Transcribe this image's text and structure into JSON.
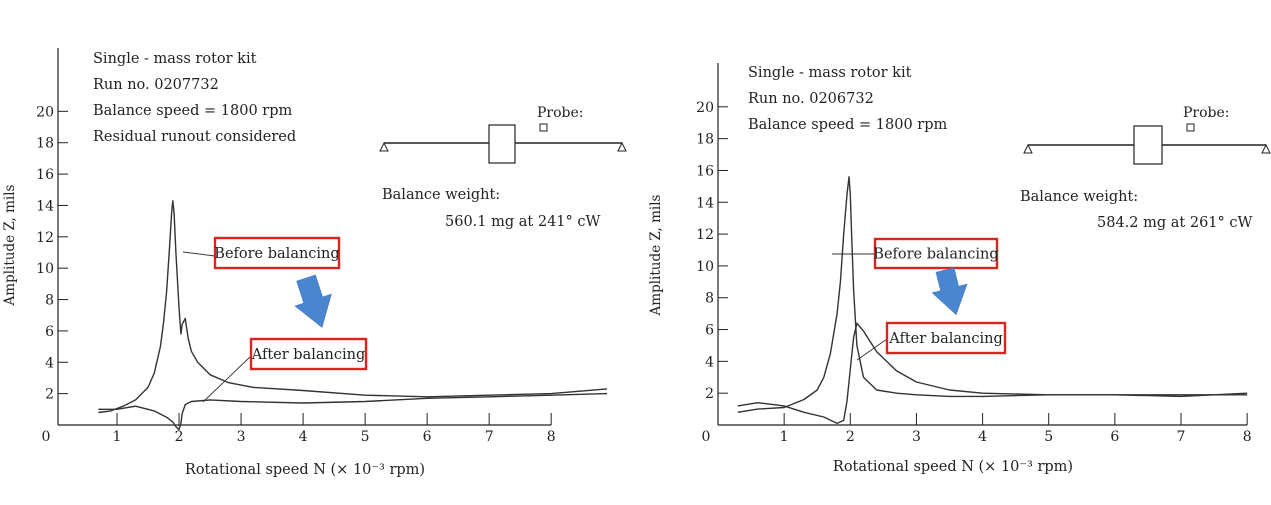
{
  "chart_data": [
    {
      "type": "line",
      "info_lines": [
        "Single - mass rotor kit",
        "Run no. 0207732",
        "Balance speed = 1800 rpm",
        "Residual runout considered"
      ],
      "probe_label": "Probe:",
      "balance_weight_label": "Balance weight:",
      "balance_weight_value": "560.1 mg at 241° cW",
      "xlabel": "Rotational speed N (× 10⁻³ rpm)",
      "ylabel": "Amplitude Z, mils",
      "x_ticks": [
        0,
        1,
        2,
        3,
        4,
        5,
        6,
        7,
        8
      ],
      "y_ticks": [
        2,
        4,
        6,
        8,
        10,
        12,
        14,
        16,
        18,
        20
      ],
      "xlim": [
        0,
        8.9
      ],
      "ylim": [
        0,
        22
      ],
      "annotations": [
        "Before balancing",
        "After balancing"
      ],
      "series": [
        {
          "name": "Before balancing",
          "x": [
            0.7,
            0.9,
            1.1,
            1.3,
            1.5,
            1.6,
            1.7,
            1.75,
            1.8,
            1.85,
            1.88,
            1.9,
            1.92,
            1.95,
            2.0,
            2.03,
            2.05,
            2.1,
            2.15,
            2.2,
            2.3,
            2.5,
            2.8,
            3.2,
            4.0,
            5.0,
            6.0,
            7.0,
            8.0,
            8.9
          ],
          "y": [
            0.8,
            0.9,
            1.2,
            1.6,
            2.4,
            3.3,
            5.0,
            6.5,
            8.5,
            11.5,
            13.5,
            14.3,
            13.5,
            11.0,
            7.5,
            5.8,
            6.4,
            6.8,
            5.5,
            4.7,
            4.0,
            3.2,
            2.7,
            2.4,
            2.2,
            1.9,
            1.8,
            1.9,
            2.0,
            2.3
          ]
        },
        {
          "name": "After balancing",
          "x": [
            0.7,
            1.0,
            1.3,
            1.6,
            1.8,
            1.9,
            1.95,
            2.0,
            2.03,
            2.05,
            2.1,
            2.2,
            2.5,
            3.0,
            4.0,
            5.0,
            6.0,
            7.0,
            8.0,
            8.9
          ],
          "y": [
            1.0,
            1.0,
            1.2,
            0.9,
            0.5,
            0.2,
            -0.1,
            -0.3,
            0.1,
            0.7,
            1.3,
            1.5,
            1.6,
            1.5,
            1.4,
            1.5,
            1.7,
            1.8,
            1.9,
            2.0
          ]
        }
      ]
    },
    {
      "type": "line",
      "info_lines": [
        "Single - mass rotor kit",
        "Run no. 0206732",
        "Balance speed = 1800 rpm"
      ],
      "probe_label": "Probe:",
      "balance_weight_label": "Balance weight:",
      "balance_weight_value": "584.2 mg at 261° cW",
      "xlabel": "Rotational speed N (× 10⁻³ rpm)",
      "ylabel": "Amplitude Z, mils",
      "x_ticks": [
        0,
        1,
        2,
        3,
        4,
        5,
        6,
        7,
        8
      ],
      "y_ticks": [
        2,
        4,
        6,
        8,
        10,
        12,
        14,
        16,
        18,
        20
      ],
      "xlim": [
        0,
        8.3
      ],
      "ylim": [
        0,
        22
      ],
      "annotations": [
        "Before balancing",
        "After balancing"
      ],
      "series": [
        {
          "name": "Before balancing",
          "x": [
            0.3,
            0.6,
            1.0,
            1.3,
            1.5,
            1.6,
            1.7,
            1.8,
            1.85,
            1.9,
            1.95,
            1.98,
            2.0,
            2.02,
            2.05,
            2.1,
            2.2,
            2.4,
            2.7,
            3.0,
            3.5,
            4.0,
            5.0,
            6.0,
            7.0,
            8.0
          ],
          "y": [
            0.8,
            1.0,
            1.1,
            1.6,
            2.2,
            3.0,
            4.5,
            7.0,
            9.0,
            12.0,
            14.5,
            15.6,
            14.5,
            12.0,
            8.5,
            5.0,
            3.0,
            2.2,
            2.0,
            1.9,
            1.8,
            1.8,
            1.9,
            1.9,
            1.9,
            1.9
          ]
        },
        {
          "name": "After balancing",
          "x": [
            0.3,
            0.6,
            1.0,
            1.3,
            1.6,
            1.8,
            1.9,
            1.95,
            2.0,
            2.05,
            2.1,
            2.2,
            2.4,
            2.7,
            3.0,
            3.5,
            4.0,
            5.0,
            6.0,
            7.0,
            8.0
          ],
          "y": [
            1.2,
            1.4,
            1.2,
            0.8,
            0.5,
            0.1,
            0.3,
            1.5,
            3.5,
            5.5,
            6.4,
            5.9,
            4.6,
            3.4,
            2.7,
            2.2,
            2.0,
            1.9,
            1.9,
            1.8,
            2.0
          ]
        }
      ]
    }
  ]
}
